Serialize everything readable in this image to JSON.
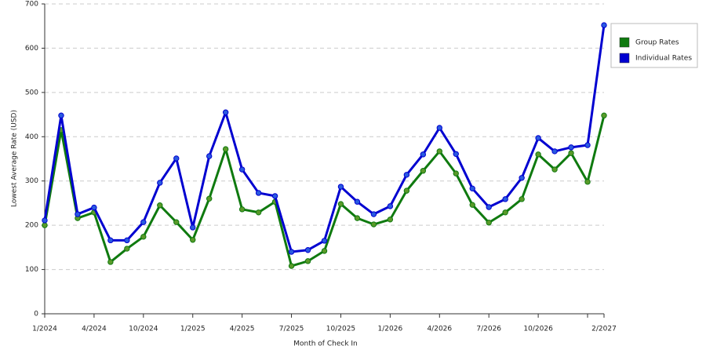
{
  "chart_data": {
    "type": "line",
    "x_label": "Month of Check In",
    "y_label": "Lowest Average Rate (USD)",
    "categories": [
      "1/2024",
      null,
      null,
      "4/2024",
      null,
      null,
      "10/2024",
      null,
      null,
      "1/2025",
      null,
      null,
      "4/2025",
      null,
      null,
      "7/2025",
      null,
      null,
      "10/2025",
      null,
      null,
      "1/2026",
      null,
      null,
      "4/2026",
      null,
      null,
      "7/2026",
      null,
      null,
      "10/2026",
      null,
      null,
      null,
      "2/2027"
    ],
    "series": [
      {
        "name": "Group Rates",
        "color": "#0f7a0f",
        "marker_color": "#5a9a2a",
        "values": [
          200,
          415,
          216,
          229,
          117,
          147,
          174,
          245,
          207,
          167,
          260,
          372,
          236,
          229,
          253,
          108,
          119,
          142,
          248,
          216,
          202,
          213,
          278,
          323,
          367,
          317,
          246,
          206,
          229,
          259,
          360,
          326,
          363,
          298,
          448
        ]
      },
      {
        "name": "Individual Rates",
        "color": "#0000d0",
        "marker_color": "#2a5ae0",
        "values": [
          211,
          448,
          225,
          240,
          166,
          166,
          207,
          296,
          351,
          195,
          356,
          455,
          326,
          273,
          266,
          140,
          144,
          165,
          287,
          253,
          225,
          243,
          314,
          360,
          420,
          361,
          283,
          241,
          259,
          307,
          397,
          367,
          376,
          381,
          652
        ]
      }
    ],
    "ylim": [
      0,
      700
    ],
    "yticks": [
      0,
      100,
      200,
      300,
      400,
      500,
      600,
      700
    ],
    "grid": true,
    "legend": "right"
  }
}
